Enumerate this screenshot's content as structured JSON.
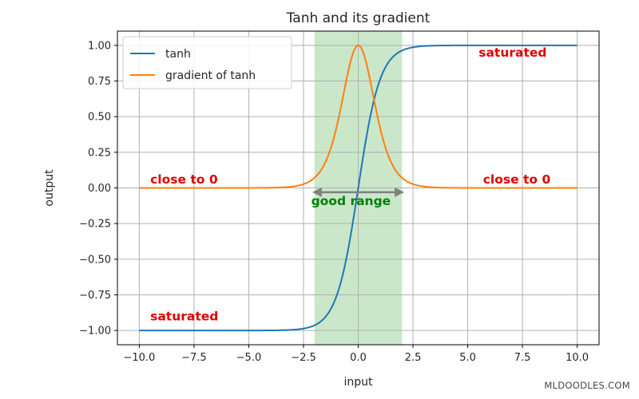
{
  "chart_data": {
    "type": "line",
    "title": "Tanh and its gradient",
    "xlabel": "input",
    "ylabel": "output",
    "xlim": [
      -11,
      11
    ],
    "ylim": [
      -1.1,
      1.1
    ],
    "x_ticks": [
      -10.0,
      -7.5,
      -5.0,
      -2.5,
      0.0,
      2.5,
      5.0,
      7.5,
      10.0
    ],
    "x_tick_labels": [
      "−10.0",
      "−7.5",
      "−5.0",
      "−2.5",
      "0.0",
      "2.5",
      "5.0",
      "7.5",
      "10.0"
    ],
    "y_ticks": [
      -1.0,
      -0.75,
      -0.5,
      -0.25,
      0.0,
      0.25,
      0.5,
      0.75,
      1.0
    ],
    "y_tick_labels": [
      "−1.00",
      "−0.75",
      "−0.50",
      "−0.25",
      "0.00",
      "0.25",
      "0.50",
      "0.75",
      "1.00"
    ],
    "grid": true,
    "legend_position": "top-left",
    "x_range": [
      -10,
      10
    ],
    "series": [
      {
        "name": "tanh",
        "function": "tanh",
        "color": "#1f77b4",
        "x": [
          -10,
          -4,
          -3,
          -2.5,
          -2,
          -1.5,
          -1,
          -0.5,
          0,
          0.5,
          1,
          1.5,
          2,
          2.5,
          3,
          4,
          10
        ],
        "y": [
          -1.0,
          -0.999,
          -0.995,
          -0.987,
          -0.964,
          -0.905,
          -0.762,
          -0.462,
          0.0,
          0.462,
          0.762,
          0.905,
          0.964,
          0.987,
          0.995,
          0.999,
          1.0
        ]
      },
      {
        "name": "gradient of tanh",
        "function": "1 - tanh^2",
        "color": "#ff7f0e",
        "x": [
          -10,
          -4,
          -3,
          -2.5,
          -2,
          -1.5,
          -1,
          -0.5,
          0,
          0.5,
          1,
          1.5,
          2,
          2.5,
          3,
          4,
          10
        ],
        "y": [
          0.0,
          0.001,
          0.01,
          0.026,
          0.071,
          0.181,
          0.42,
          0.786,
          1.0,
          0.786,
          0.42,
          0.181,
          0.071,
          0.026,
          0.01,
          0.001,
          0.0
        ]
      }
    ],
    "shaded_region": {
      "x": [
        -2,
        2
      ],
      "color": "#2ca02c",
      "opacity": 0.25
    },
    "range_arrow": {
      "x": [
        -2.1,
        2.1
      ],
      "y": -0.03,
      "color": "#808080"
    },
    "annotations": [
      {
        "text": "saturated",
        "x": 5.5,
        "y": 0.92,
        "color": "#e00000"
      },
      {
        "text": "close to 0",
        "x": -9.5,
        "y": 0.03,
        "color": "#e00000"
      },
      {
        "text": "close to 0",
        "x": 5.7,
        "y": 0.03,
        "color": "#e00000"
      },
      {
        "text": "good range",
        "x": -2.15,
        "y": -0.12,
        "color": "#008000"
      },
      {
        "text": "saturated",
        "x": -9.5,
        "y": -0.93,
        "color": "#e00000"
      }
    ]
  },
  "watermark": "MLDOODLES.COM"
}
